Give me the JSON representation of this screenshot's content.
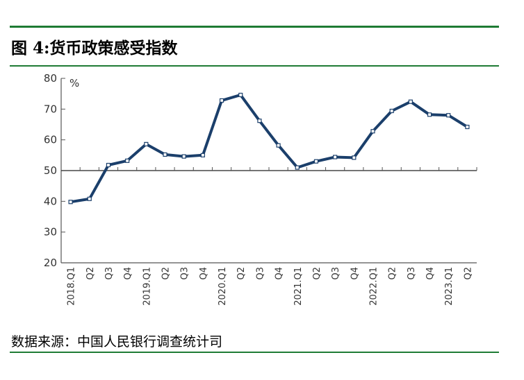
{
  "figure": {
    "title": "图 4:货币政策感受指数",
    "source": "数据来源：中国人民银行调查统计司"
  },
  "chart_data": {
    "type": "line",
    "title": "",
    "xlabel": "",
    "ylabel": "%",
    "ylim": [
      20,
      80
    ],
    "yticks": [
      20,
      30,
      40,
      50,
      60,
      70,
      80
    ],
    "reference_line": 50,
    "grid": false,
    "line_color": "#1b3f6b",
    "categories": [
      "2018.Q1",
      "Q2",
      "Q3",
      "Q4",
      "2019.Q1",
      "Q2",
      "Q3",
      "Q4",
      "2020.Q1",
      "Q2",
      "Q3",
      "Q4",
      "2021.Q1",
      "Q2",
      "Q3",
      "Q4",
      "2022.Q1",
      "Q2",
      "Q3",
      "Q4",
      "2023.Q1",
      "Q2"
    ],
    "series": [
      {
        "values": [
          39.8,
          40.8,
          51.8,
          53.2,
          58.6,
          55.2,
          54.6,
          55.0,
          72.8,
          74.6,
          66.2,
          58.2,
          51.0,
          53.0,
          54.4,
          54.2,
          62.8,
          69.4,
          72.4,
          68.2,
          68.0,
          64.2
        ]
      }
    ]
  }
}
